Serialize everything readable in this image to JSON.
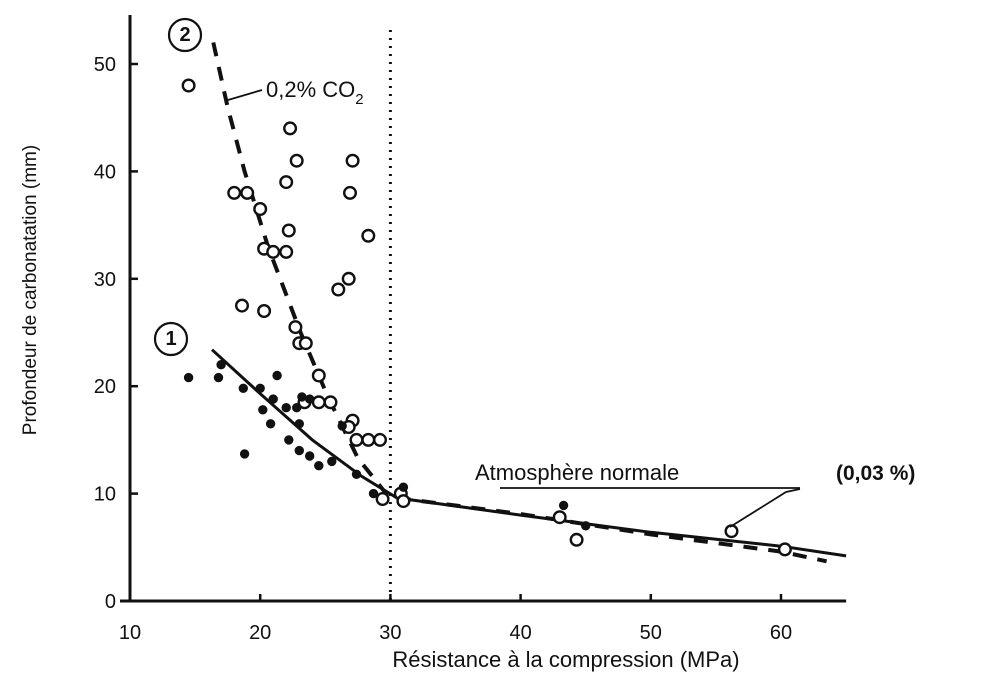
{
  "chart_data": {
    "type": "scatter",
    "title": "",
    "xlabel": "Résistance à la compression (MPa)",
    "ylabel": "Profondeur de carbonatation (mm)",
    "xlim": [
      10,
      65
    ],
    "ylim": [
      0,
      55
    ],
    "x_ticks": [
      "10",
      "20",
      "30",
      "40",
      "50",
      "60"
    ],
    "y_ticks": [
      "0",
      "10",
      "20",
      "30",
      "40",
      "50"
    ],
    "grid": false,
    "legend": "none",
    "series": [
      {
        "name": "0,2% CO2",
        "badge": "2",
        "marker": "open",
        "points": [
          [
            14.5,
            48
          ],
          [
            18,
            38
          ],
          [
            19,
            38
          ],
          [
            20,
            36.5
          ],
          [
            20.3,
            32.8
          ],
          [
            21,
            32.5
          ],
          [
            22,
            32.5
          ],
          [
            22.2,
            34.5
          ],
          [
            22,
            39
          ],
          [
            22.3,
            44
          ],
          [
            22.8,
            41
          ],
          [
            18.6,
            27.5
          ],
          [
            20.3,
            27
          ],
          [
            22.7,
            25.5
          ],
          [
            23,
            24
          ],
          [
            23.5,
            24
          ],
          [
            26,
            29
          ],
          [
            26.8,
            30
          ],
          [
            26.9,
            38
          ],
          [
            27.1,
            41
          ],
          [
            28.3,
            34
          ],
          [
            24.5,
            21
          ],
          [
            23.4,
            18.5
          ],
          [
            24.5,
            18.5
          ],
          [
            25.4,
            18.5
          ],
          [
            27.1,
            16.8
          ],
          [
            26.8,
            16.2
          ],
          [
            27.4,
            15
          ],
          [
            28.3,
            15
          ],
          [
            29.2,
            15
          ],
          [
            29.4,
            9.5
          ],
          [
            30.8,
            10
          ],
          [
            31,
            9.3
          ],
          [
            43,
            7.8
          ],
          [
            44.3,
            5.7
          ],
          [
            56.2,
            6.5
          ],
          [
            60.3,
            4.8
          ]
        ]
      },
      {
        "name": "Atmosphère normale",
        "badge": "1",
        "marker": "filled",
        "points": [
          [
            14.5,
            20.8
          ],
          [
            17,
            22
          ],
          [
            16.8,
            20.8
          ],
          [
            18.7,
            19.8
          ],
          [
            20,
            19.8
          ],
          [
            20.8,
            16.5
          ],
          [
            18.8,
            13.7
          ],
          [
            20.2,
            17.8
          ],
          [
            21,
            18.8
          ],
          [
            21.3,
            21
          ],
          [
            22,
            18
          ],
          [
            22.8,
            18
          ],
          [
            22.2,
            15
          ],
          [
            23,
            16.5
          ],
          [
            23.2,
            19
          ],
          [
            23.8,
            18.8
          ],
          [
            23,
            14
          ],
          [
            23.8,
            13.5
          ],
          [
            24.5,
            12.6
          ],
          [
            25.5,
            13
          ],
          [
            26.3,
            16.3
          ],
          [
            27.4,
            11.8
          ],
          [
            28.7,
            10
          ],
          [
            31,
            10.6
          ],
          [
            43.3,
            8.9
          ],
          [
            45,
            7
          ]
        ]
      }
    ],
    "curves": [
      {
        "name": "0,2% CO2",
        "style": "dashed",
        "points": [
          [
            16.4,
            52
          ],
          [
            17.5,
            46
          ],
          [
            18.8,
            40
          ],
          [
            20.6,
            33
          ],
          [
            23.1,
            25
          ],
          [
            25.2,
            19
          ],
          [
            27.5,
            13.3
          ],
          [
            30,
            9.5
          ]
        ]
      },
      {
        "name": "Atmosphère normale",
        "style": "solid",
        "points": [
          [
            16.3,
            23.4
          ],
          [
            20,
            19.3
          ],
          [
            24,
            15
          ],
          [
            27.8,
            11.6
          ],
          [
            30.5,
            9.6
          ],
          [
            40,
            8
          ],
          [
            50,
            6.4
          ],
          [
            60,
            5.1
          ],
          [
            65,
            4.2
          ]
        ]
      },
      {
        "name": "Atmosphère normale",
        "style": "dashed",
        "points": [
          [
            30.5,
            9.6
          ],
          [
            40,
            8.1
          ],
          [
            50,
            6.2
          ],
          [
            60,
            4.6
          ],
          [
            63.5,
            3.7
          ]
        ]
      }
    ],
    "reference_line": {
      "x": 30,
      "style": "dotted"
    },
    "annotations": {
      "label_2_prefix": "0,2% CO",
      "label_2_sub": "2",
      "label_1": "Atmosphère normale",
      "label_1_extra": "(0,03 %)"
    }
  }
}
